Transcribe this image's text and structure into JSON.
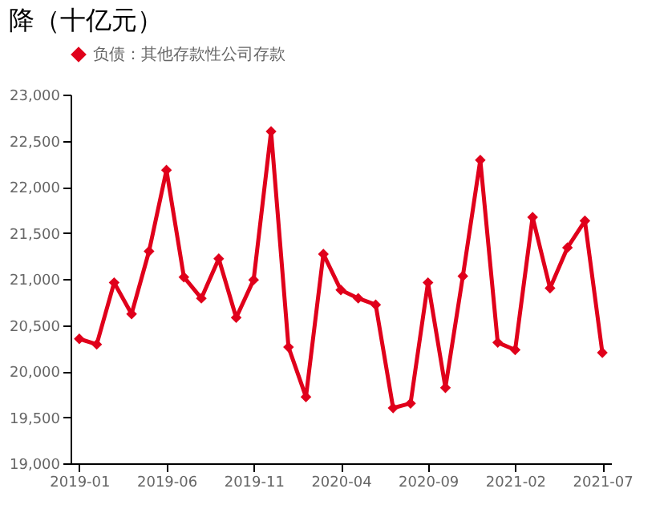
{
  "chart_data": {
    "type": "line",
    "title": "降（十亿元）",
    "categories": [
      "2019-01",
      null,
      null,
      null,
      null,
      "2019-06",
      null,
      null,
      null,
      null,
      "2019-11",
      null,
      null,
      null,
      null,
      "2020-04",
      null,
      null,
      null,
      null,
      "2020-09",
      null,
      null,
      null,
      null,
      "2021-02",
      null,
      null,
      null,
      null,
      "2021-07"
    ],
    "series": [
      {
        "name": "负债：其他存款性公司存款",
        "color": "#e0001b",
        "values": [
          20350,
          20290,
          20960,
          20620,
          21300,
          22180,
          21020,
          20790,
          21220,
          20580,
          20990,
          22600,
          20260,
          19720,
          21270,
          20880,
          20790,
          20720,
          19600,
          19650,
          20960,
          19820,
          21030,
          22290,
          20310,
          20230,
          21670,
          20900,
          21340,
          21630,
          20200
        ]
      }
    ],
    "ylim": [
      19000,
      23000
    ],
    "yticks": [
      {
        "value": 19000,
        "label": "19,000"
      },
      {
        "value": 19500,
        "label": "19,500"
      },
      {
        "value": 20000,
        "label": "20,000"
      },
      {
        "value": 20500,
        "label": "20,500"
      },
      {
        "value": 21000,
        "label": "21,000"
      },
      {
        "value": 21500,
        "label": "21,500"
      },
      {
        "value": 22000,
        "label": "22,000"
      },
      {
        "value": 22500,
        "label": "22,500"
      },
      {
        "value": 23000,
        "label": "23,000"
      }
    ],
    "grid": false,
    "legend": "top",
    "marker": "diamond",
    "line_style": "solid"
  }
}
